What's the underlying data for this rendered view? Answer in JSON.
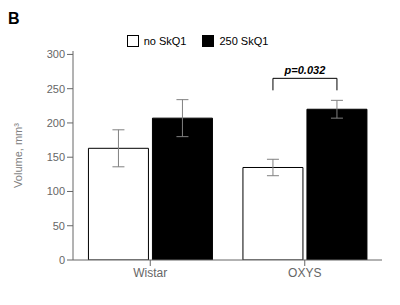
{
  "chart_data": {
    "type": "bar",
    "title": "B",
    "categories": [
      "Wistar",
      "OXYS"
    ],
    "series": [
      {
        "name": "no SkQ1",
        "color": "white",
        "values": [
          163,
          135
        ],
        "errors": [
          27,
          12
        ]
      },
      {
        "name": "250 SkQ1",
        "color": "black",
        "values": [
          207,
          220
        ],
        "errors": [
          27,
          13
        ]
      }
    ],
    "ylabel": "Volume, mm³",
    "ylim": [
      0,
      305
    ],
    "yticks": [
      0,
      50,
      100,
      150,
      200,
      250,
      300
    ],
    "grid": false,
    "legend": "upper center",
    "annotations": [
      {
        "text": "p=0.032",
        "category": "OXYS"
      }
    ]
  }
}
